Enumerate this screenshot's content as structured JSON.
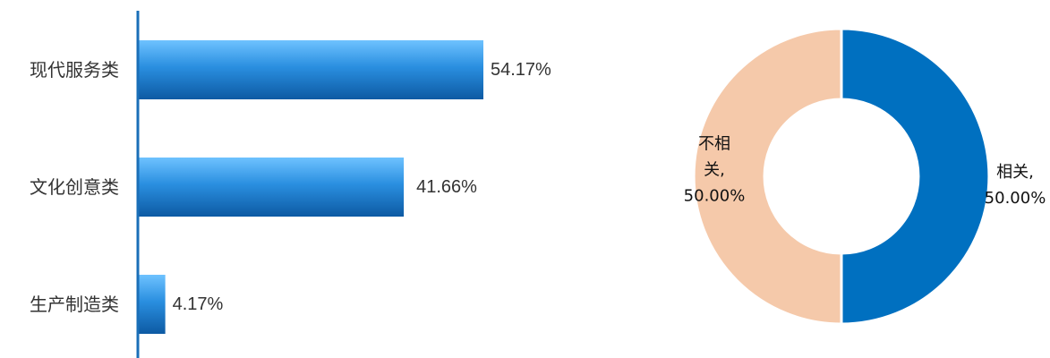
{
  "chart_data": [
    {
      "type": "bar",
      "orientation": "horizontal",
      "categories": [
        "现代服务类",
        "文化创意类",
        "生产制造类"
      ],
      "values": [
        54.17,
        41.66,
        4.17
      ],
      "value_labels": [
        "54.17%",
        "41.66%",
        "4.17%"
      ],
      "xlim": [
        0,
        100
      ],
      "grid": false,
      "legend": "none",
      "colors": {
        "bar_top": "#6ec2ff",
        "bar_mid": "#2a8fe0",
        "bar_bottom": "#0d5aa3",
        "axis": "#1a6fb8"
      }
    },
    {
      "type": "pie",
      "style": "donut",
      "slices": [
        {
          "label_lines": [
            "相关,",
            "50.00%"
          ],
          "value": 50.0,
          "color": "#0070c0"
        },
        {
          "label_lines": [
            "不相",
            "关,",
            "50.00%"
          ],
          "value": 50.0,
          "color": "#f5c9aa"
        }
      ],
      "legend": "none"
    }
  ]
}
